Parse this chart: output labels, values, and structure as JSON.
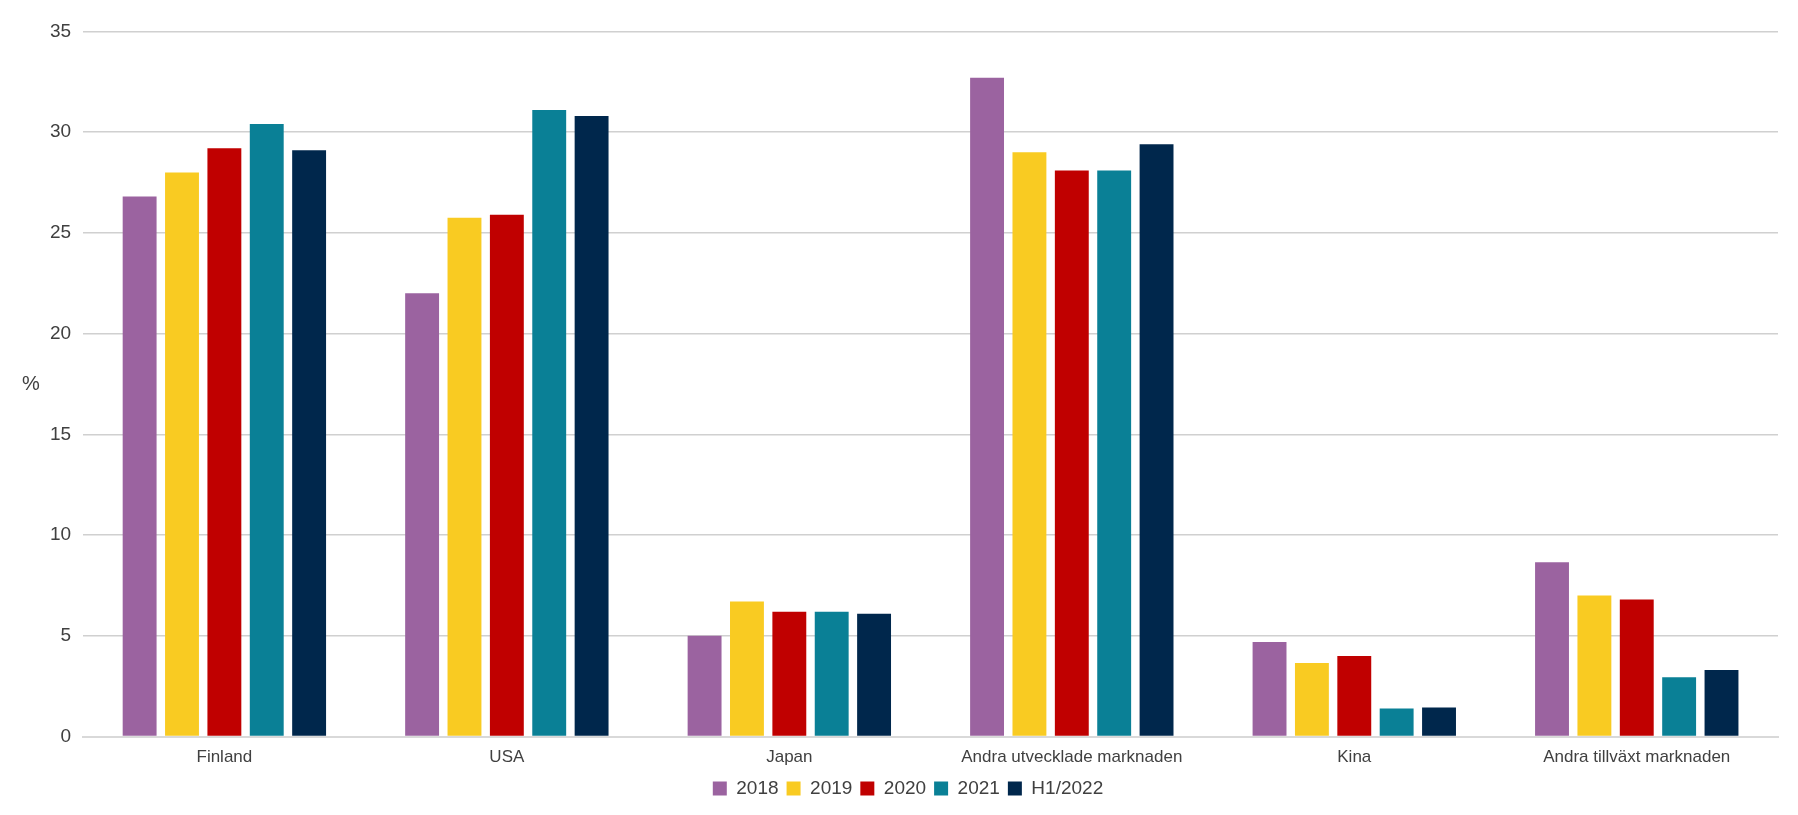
{
  "chart_data": {
    "type": "bar",
    "ylabel": "%",
    "categories": [
      "Finland",
      "USA",
      "Japan",
      "Andra utvecklade marknaden",
      "Kina",
      "Andra tillväxt marknaden"
    ],
    "series": [
      {
        "name": "2018",
        "color": "#9b63a0",
        "values": [
          26.8,
          22.0,
          5.0,
          32.7,
          4.7,
          8.65
        ]
      },
      {
        "name": "2019",
        "color": "#f9cb22",
        "values": [
          28.0,
          25.75,
          6.7,
          29.0,
          3.65,
          7.0
        ]
      },
      {
        "name": "2020",
        "color": "#c00000",
        "values": [
          29.2,
          25.9,
          6.2,
          28.1,
          4.0,
          6.8
        ]
      },
      {
        "name": "2021",
        "color": "#0a8096",
        "values": [
          30.4,
          31.1,
          6.2,
          28.1,
          1.4,
          2.95
        ]
      },
      {
        "name": "H1/2022",
        "color": "#00274c",
        "values": [
          29.1,
          30.8,
          6.1,
          29.4,
          1.45,
          3.3
        ]
      }
    ],
    "ylim": [
      0,
      35
    ],
    "yticks": [
      0,
      5,
      10,
      15,
      20,
      25,
      30,
      35
    ],
    "grid": "y",
    "legend": "bottom"
  }
}
